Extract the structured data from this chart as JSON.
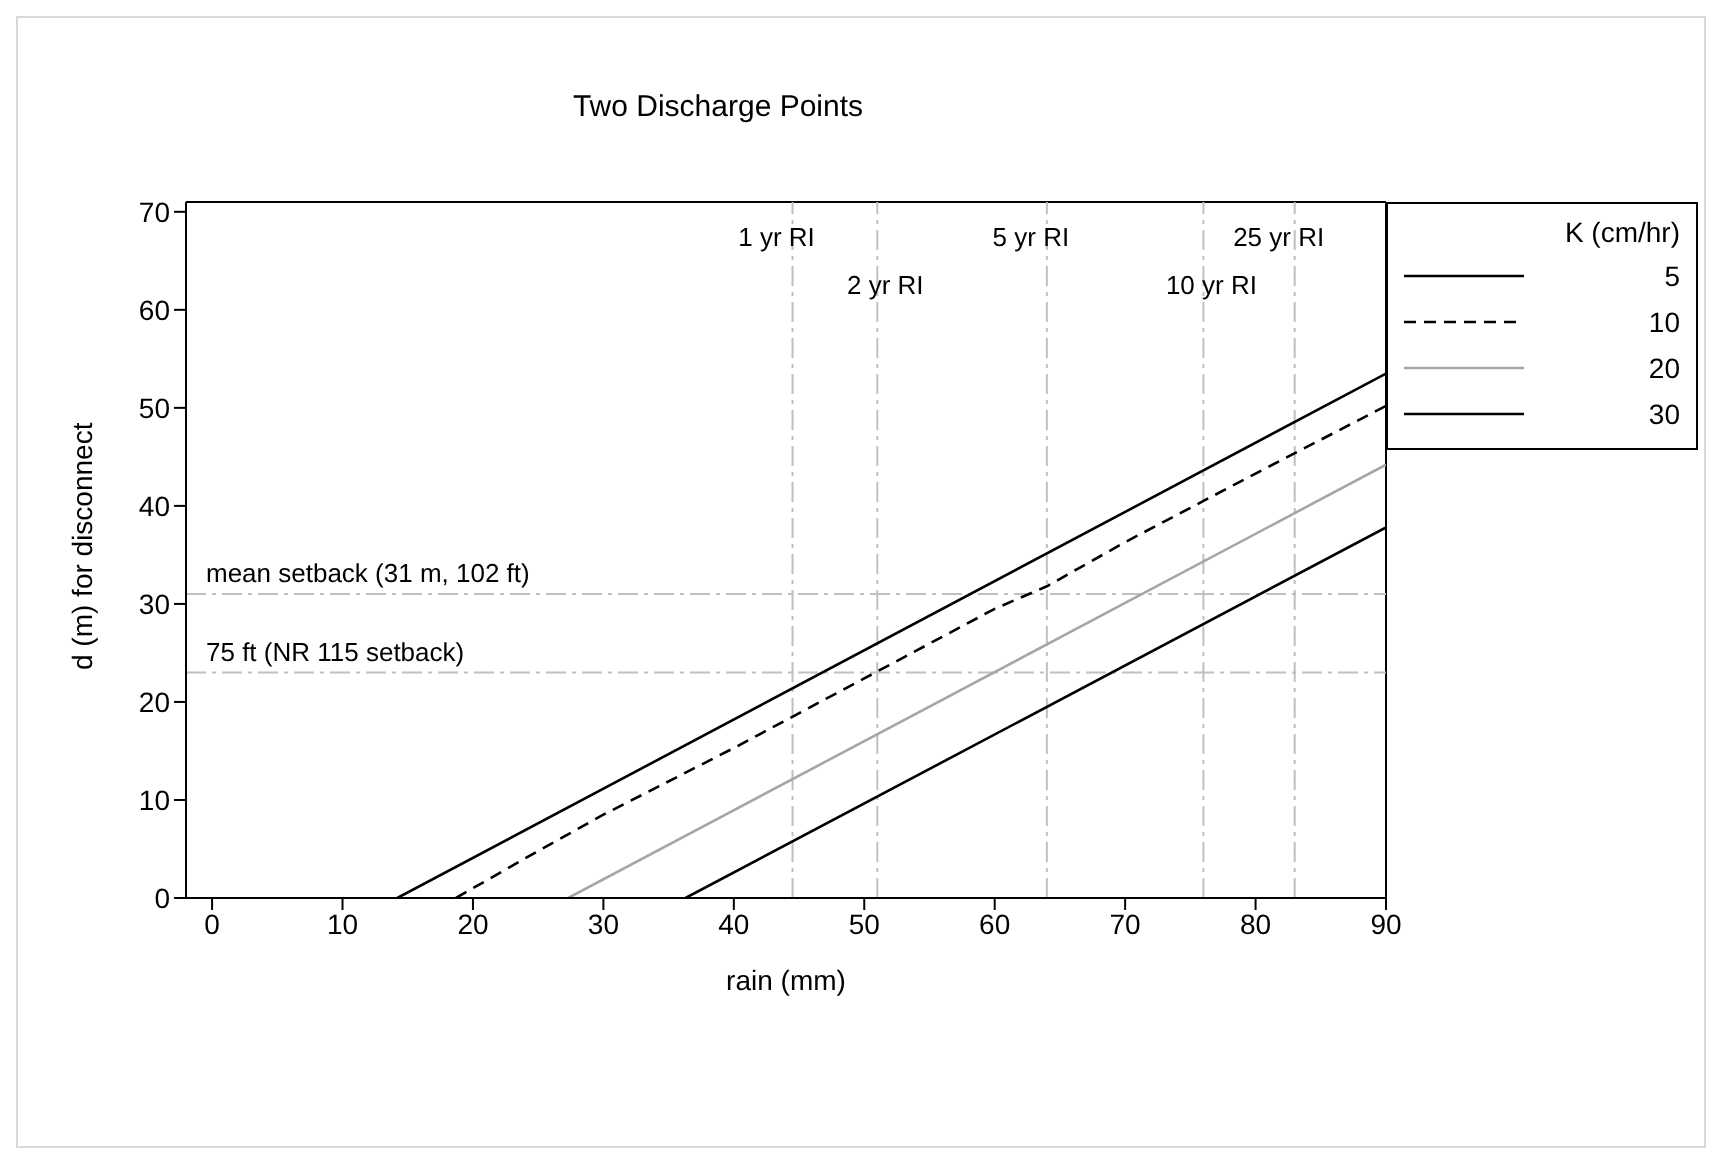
{
  "chart_data": {
    "type": "line",
    "title": "Two Discharge Points",
    "xlabel": "rain (mm)",
    "ylabel": "d (m) for disconnect",
    "legend_title": "K (cm/hr)",
    "legend": "top right",
    "grid": false,
    "marker": "none",
    "xlim": [
      -2,
      90
    ],
    "xticks": [
      0,
      10,
      20,
      30,
      40,
      50,
      60,
      70,
      80,
      90
    ],
    "ylim": [
      0,
      71
    ],
    "yticks": [
      0,
      10,
      20,
      30,
      40,
      50,
      60,
      70
    ],
    "series": [
      {
        "name": "5",
        "color": "#000000",
        "line_style": "solid",
        "x": [
          14.2,
          90
        ],
        "values": [
          0,
          53.5
        ]
      },
      {
        "name": "10",
        "color": "#000000",
        "line_style": "dashed",
        "x": [
          18.7,
          20,
          25,
          30,
          40,
          50,
          60,
          64,
          70,
          80,
          90
        ],
        "values": [
          0,
          1,
          4.8,
          8.5,
          15.3,
          22.4,
          29.5,
          31.8,
          36.3,
          43.3,
          50.2
        ]
      },
      {
        "name": "20",
        "color": "#a6a6a6",
        "line_style": "solid",
        "x": [
          27.3,
          90
        ],
        "values": [
          0,
          44.2
        ]
      },
      {
        "name": "30",
        "color": "#000000",
        "line_style": "solid",
        "x": [
          36.3,
          90
        ],
        "values": [
          0,
          37.8
        ]
      }
    ],
    "ref_lines": [
      {
        "axis": "x",
        "value": 44.5,
        "label": "1 yr RI",
        "color": "#bfbfbf",
        "line_style": "dashed"
      },
      {
        "axis": "x",
        "value": 51,
        "label": "2 yr RI",
        "color": "#bfbfbf",
        "line_style": "dashed"
      },
      {
        "axis": "x",
        "value": 64,
        "label": "5 yr RI",
        "color": "#bfbfbf",
        "line_style": "dashed"
      },
      {
        "axis": "x",
        "value": 76,
        "label": "10 yr RI",
        "color": "#bfbfbf",
        "line_style": "dashed"
      },
      {
        "axis": "x",
        "value": 83,
        "label": "25 yr RI",
        "color": "#bfbfbf",
        "line_style": "dashed"
      },
      {
        "axis": "y",
        "value": 31,
        "label": "mean setback (31 m, 102 ft)",
        "color": "#bfbfbf",
        "line_style": "dashed"
      },
      {
        "axis": "y",
        "value": 23,
        "label": "75 ft (NR 115 setback)",
        "color": "#bfbfbf",
        "line_style": "dashed"
      }
    ]
  }
}
